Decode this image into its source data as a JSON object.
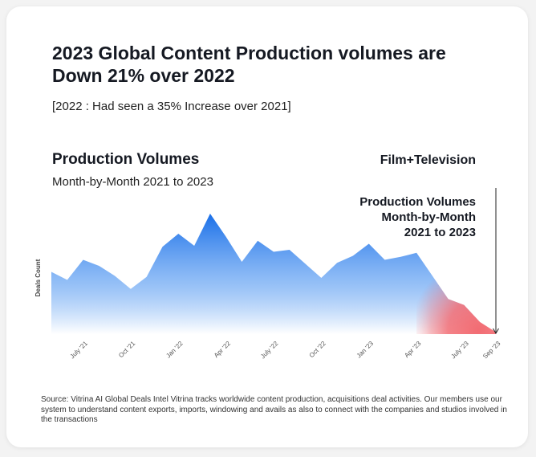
{
  "card": {
    "title": "2023 Global Content Production volumes are Down 21% over 2022",
    "subtitle": "[2022 : Had seen a 35% Increase over 2021]",
    "section_title": "Production Volumes",
    "section_subtitle": "Month-by-Month 2021 to 2023",
    "category_label": "Film+Television",
    "annotation_lines": [
      "Production Volumes",
      "Month-by-Month",
      "2021 to 2023"
    ],
    "source": "Source: Vitrina AI Global Deals Intel Vitrina tracks worldwide content production, acquisitions deal activities. Our members use our system to understand content exports, imports, windowing and avails as also to connect with the companies and studios involved in the transactions"
  },
  "colors": {
    "area_top": "#1a6fe8",
    "area_bottom": "#ffffff",
    "decline_overlay": "#f26c73"
  },
  "chart_data": {
    "type": "area",
    "title": "",
    "xlabel": "",
    "ylabel": "Deals Count",
    "x_ticks": [
      "July '21",
      "Oct '21",
      "Jan '22",
      "Apr '22",
      "July '22",
      "Oct '22",
      "Jan '23",
      "Apr '23",
      "July '23",
      "Sep '23"
    ],
    "x": [
      "May '21",
      "Jun '21",
      "Jul '21",
      "Aug '21",
      "Sep '21",
      "Oct '21",
      "Nov '21",
      "Dec '21",
      "Jan '22",
      "Feb '22",
      "Mar '22",
      "Apr '22",
      "May '22",
      "Jun '22",
      "Jul '22",
      "Aug '22",
      "Sep '22",
      "Oct '22",
      "Nov '22",
      "Dec '22",
      "Jan '23",
      "Feb '23",
      "Mar '23",
      "Apr '23",
      "May '23",
      "Jun '23",
      "Jul '23",
      "Aug '23",
      "Sep '23"
    ],
    "values": [
      62,
      54,
      74,
      68,
      58,
      45,
      57,
      87,
      100,
      88,
      120,
      97,
      72,
      93,
      82,
      84,
      70,
      56,
      71,
      78,
      90,
      74,
      77,
      81,
      58,
      35,
      29,
      12,
      2
    ],
    "ylim": [
      0,
      120
    ],
    "grid": false,
    "legend": "none",
    "highlight_range": [
      "Apr '23",
      "Sep '23"
    ],
    "annotation_marker_x": "Sep '23"
  }
}
